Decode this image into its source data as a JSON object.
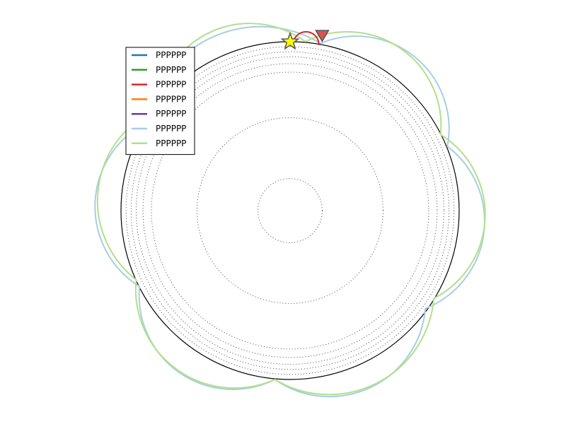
{
  "chart_data": {
    "type": "line",
    "projection": "polar-disk",
    "title": "",
    "disk_radius": 1.0,
    "grid": {
      "style": "dotted",
      "circle_radii": [
        0.19,
        0.55,
        0.82,
        0.87,
        0.91,
        0.94,
        0.97
      ]
    },
    "legend": {
      "placement": "upper-left",
      "entries": [
        {
          "label": "PPPPPP",
          "color": "#1f77b4"
        },
        {
          "label": "PPPPPP",
          "color": "#2ca02c"
        },
        {
          "label": "PPPPPP",
          "color": "#d62728"
        },
        {
          "label": "PPPPPP",
          "color": "#ff7f0e"
        },
        {
          "label": "PPPPPP",
          "color": "#6a3d9a"
        },
        {
          "label": "PPPPPP",
          "color": "#a6cee3"
        },
        {
          "label": "PPPPPP",
          "color": "#b2df8a"
        }
      ]
    },
    "series": [
      {
        "color": "#a6cee3",
        "vertices": [
          [
            0.18,
            0.99
          ],
          [
            0.93,
            0.38
          ],
          [
            0.8,
            -0.58
          ],
          [
            -0.09,
            -1.0
          ],
          [
            -0.89,
            -0.45
          ],
          [
            -0.85,
            0.52
          ]
        ]
      },
      {
        "color": "#b2df8a",
        "vertices": [
          [
            0.09,
            1.0
          ],
          [
            0.89,
            0.45
          ],
          [
            0.85,
            -0.52
          ],
          [
            -0.09,
            -1.0
          ],
          [
            -0.91,
            -0.41
          ],
          [
            -0.79,
            0.6
          ]
        ]
      },
      {
        "color": "#d62728",
        "vertices": [
          [
            0.02,
            1.0
          ],
          [
            0.17,
            0.98
          ]
        ]
      }
    ],
    "markers": [
      {
        "name": "start",
        "shape": "star",
        "color": "#ffff00",
        "x": 0.0,
        "y": 1.0
      },
      {
        "name": "end",
        "shape": "triangle-down",
        "color": "#d9534f",
        "x": 0.19,
        "y": 1.04
      }
    ],
    "axis_range": {
      "x": [
        -1,
        1
      ],
      "y": [
        -1,
        1
      ]
    }
  }
}
